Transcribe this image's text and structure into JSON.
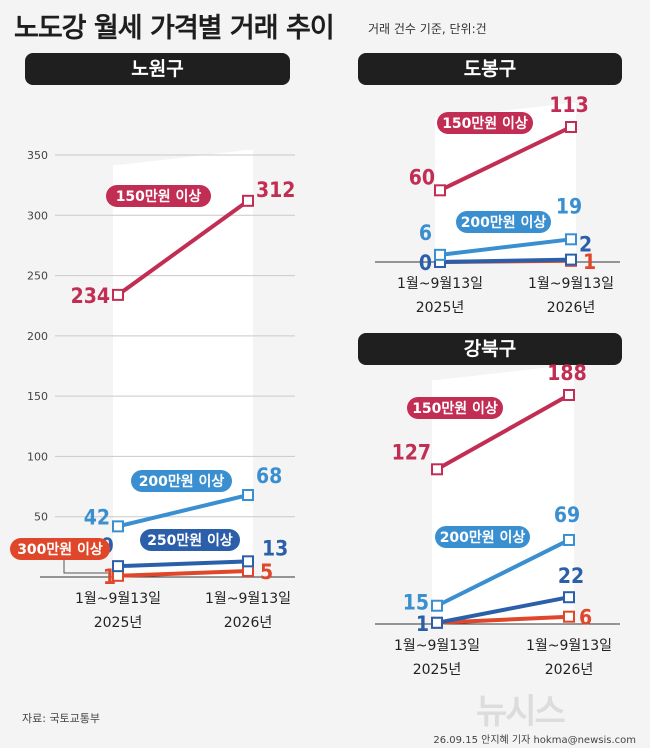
{
  "title": "노도강 월세 가격별 거래 추이",
  "unit_note": "거래 건수 기준, 단위:건",
  "source": "자료: 국토교통부",
  "credit": "26.09.15 안지혜 기자 hokma@newsis.com",
  "watermark": "뉴시스",
  "colors": {
    "s150": "#c22d54",
    "s200": "#3a8fd0",
    "s250": "#2b5faa",
    "s300": "#e0472a"
  },
  "chart_data": [
    {
      "type": "line",
      "title": "노원구",
      "x": [
        "1월~9월13일 2025년",
        "1월~9월13일 2026년"
      ],
      "xlabels": [
        [
          "1월~9월13일",
          "2025년"
        ],
        [
          "1월~9월13일",
          "2026년"
        ]
      ],
      "ylim": [
        0,
        350
      ],
      "yticks": [
        "50",
        "100",
        "150",
        "200",
        "250",
        "300",
        "350"
      ],
      "series": [
        {
          "name": "150만원 이상",
          "color": "#c22d54",
          "values": [
            234,
            312
          ],
          "labels": [
            "234",
            "312"
          ]
        },
        {
          "name": "200만원 이상",
          "color": "#3a8fd0",
          "values": [
            42,
            68
          ],
          "labels": [
            "42",
            "68"
          ]
        },
        {
          "name": "250만원 이상",
          "color": "#2b5faa",
          "values": [
            9,
            13
          ],
          "labels": [
            "9",
            "13"
          ]
        },
        {
          "name": "300만원 이상",
          "color": "#e0472a",
          "values": [
            1,
            5
          ],
          "labels": [
            "1",
            "5"
          ]
        }
      ]
    },
    {
      "type": "line",
      "title": "도봉구",
      "x": [
        "1월~9월13일 2025년",
        "1월~9월13일 2026년"
      ],
      "xlabels": [
        [
          "1월~9월13일",
          "2025년"
        ],
        [
          "1월~9월13일",
          "2026년"
        ]
      ],
      "series": [
        {
          "name": "150만원 이상",
          "color": "#c22d54",
          "values": [
            60,
            113
          ],
          "labels": [
            "60",
            "113"
          ]
        },
        {
          "name": "200만원 이상",
          "color": "#3a8fd0",
          "values": [
            6,
            19
          ],
          "labels": [
            "6",
            "19"
          ]
        },
        {
          "name": "250만원 이상",
          "color": "#2b5faa",
          "values": [
            0,
            2
          ],
          "labels": [
            "0",
            "2"
          ]
        },
        {
          "name": "300만원 이상",
          "color": "#e0472a",
          "values": [
            0,
            1
          ],
          "labels": [
            "",
            "1"
          ]
        }
      ]
    },
    {
      "type": "line",
      "title": "강북구",
      "x": [
        "1월~9월13일 2025년",
        "1월~9월13일 2026년"
      ],
      "xlabels": [
        [
          "1월~9월13일",
          "2025년"
        ],
        [
          "1월~9월13일",
          "2026년"
        ]
      ],
      "series": [
        {
          "name": "150만원 이상",
          "color": "#c22d54",
          "values": [
            127,
            188
          ],
          "labels": [
            "127",
            "188"
          ]
        },
        {
          "name": "200만원 이상",
          "color": "#3a8fd0",
          "values": [
            15,
            69
          ],
          "labels": [
            "15",
            "69"
          ]
        },
        {
          "name": "250만원 이상",
          "color": "#2b5faa",
          "values": [
            1,
            22
          ],
          "labels": [
            "1",
            "22"
          ]
        },
        {
          "name": "300만원 이상",
          "color": "#e0472a",
          "values": [
            1,
            6
          ],
          "labels": [
            "",
            "6"
          ]
        }
      ]
    }
  ]
}
